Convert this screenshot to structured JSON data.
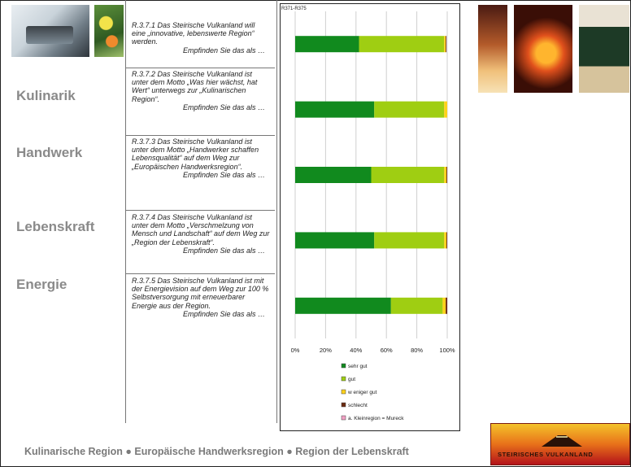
{
  "side_labels": [
    "Kulinarik",
    "Handwerk",
    "Lebenskraft",
    "Energie"
  ],
  "questions": [
    {
      "text": "R.3.7.1 Das Steirische Vulkanland will eine „innovative, lebenswerte Region“ werden.",
      "tail": "Empfinden Sie das als …"
    },
    {
      "text": "R.3.7.2 Das Steirische Vulkanland ist unter dem Motto „Was hier wächst, hat Wert“ unterwegs zur „Kulinarischen Region“.",
      "tail": "Empfinden Sie das als …"
    },
    {
      "text": "R.3.7.3 Das Steirische Vulkanland ist unter dem Motto „Handwerker schaffen Lebensqualität“ auf dem Weg zur „Europäischen Handwerksregion“.",
      "tail": "Empfinden Sie das als …"
    },
    {
      "text": "R.3.7.4 Das Steirische Vulkanland ist unter dem Motto „Verschmelzung von Mensch und Landschaft“ auf dem Weg zur „Region der Lebenskraft“.",
      "tail": "Empfinden Sie das als …"
    },
    {
      "text": "R.3.7.5 Das Steirische Vulkanland ist mit der Energievision auf dem Weg zur 100 % Selbstversorgung mit erneuerbarer Energie aus der Region.",
      "tail": "Empfinden Sie das als …"
    }
  ],
  "footer": "Kulinarische Region ● Europäische Handwerksregion ● Region der Lebenskraft",
  "logo_text": "STEIRISCHES VULKANLAND",
  "chart_data": {
    "type": "bar",
    "stacked": true,
    "orientation": "horizontal",
    "title": "R371-R375",
    "categories": [
      "R.3.7.1",
      "R.3.7.2",
      "R.3.7.3",
      "R.3.7.4",
      "R.3.7.5"
    ],
    "xlim": [
      0,
      100
    ],
    "xticks": [
      "0%",
      "20%",
      "40%",
      "60%",
      "80%",
      "100%"
    ],
    "grid": true,
    "legend_position": "bottom",
    "series": [
      {
        "name": "sehr gut",
        "color": "#118a1e",
        "values": [
          42,
          52,
          50,
          52,
          63
        ]
      },
      {
        "name": "gut",
        "color": "#9fce12",
        "values": [
          56,
          46,
          48,
          46,
          34
        ]
      },
      {
        "name": "w eniger gut",
        "color": "#ffd21a",
        "values": [
          1,
          2,
          1.5,
          1.5,
          2
        ]
      },
      {
        "name": "schlecht",
        "color": "#6a2a10",
        "values": [
          0.5,
          0,
          0.5,
          0.5,
          1
        ]
      },
      {
        "name": "a. Kleinregion = Mureck",
        "color": "#f2a0c4",
        "values": [
          0,
          0,
          0,
          0,
          0
        ]
      }
    ]
  }
}
